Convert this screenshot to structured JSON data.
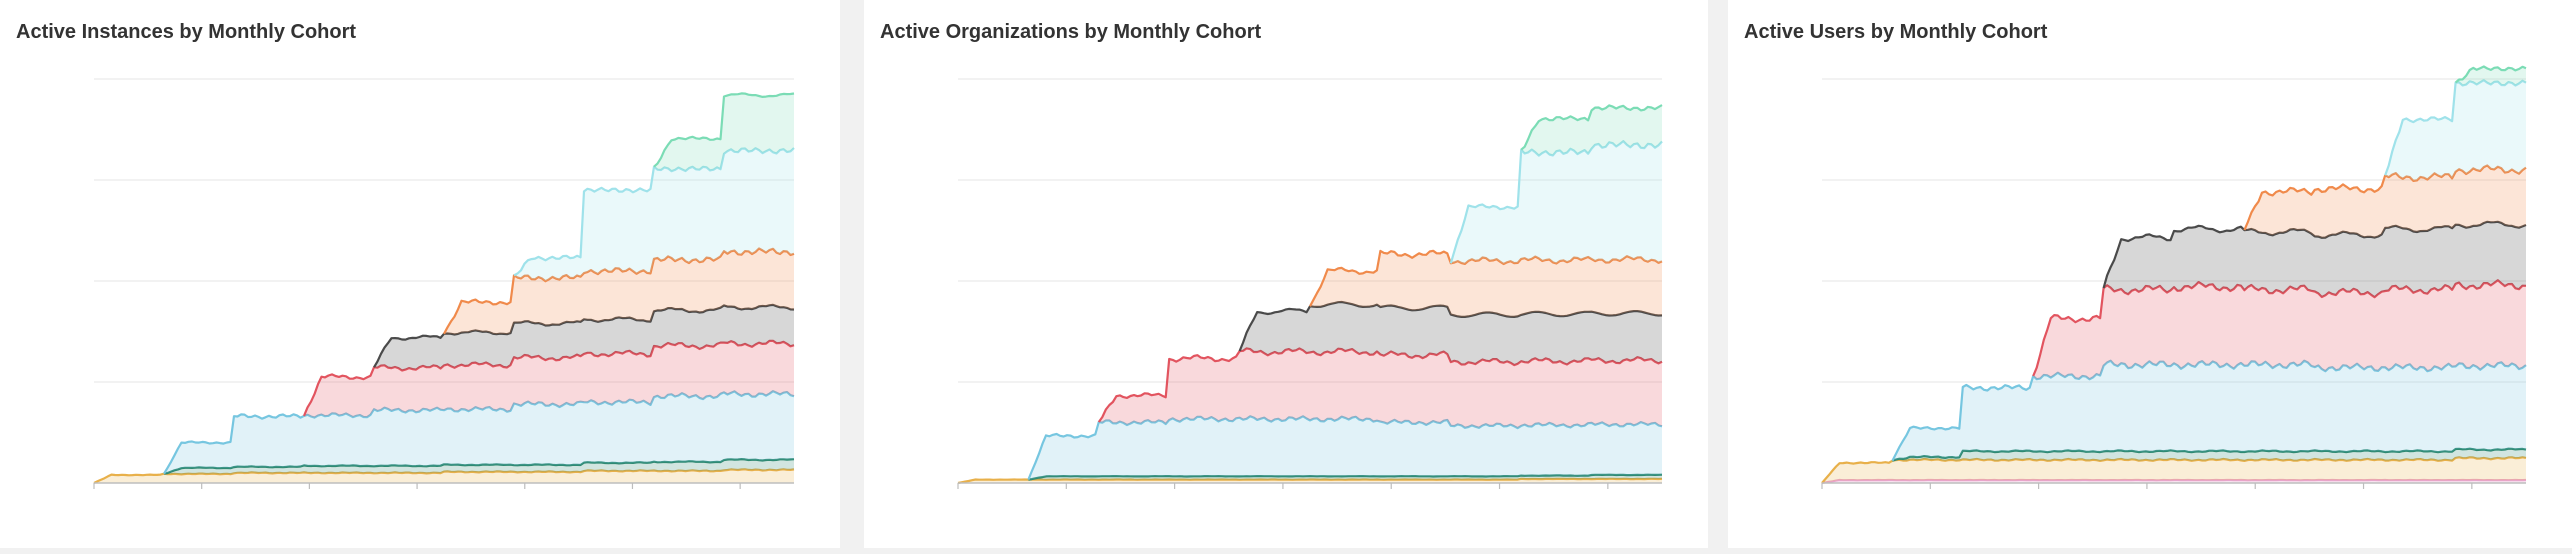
{
  "colors": {
    "mint": "#7bdcb5",
    "light_cyan": "#9fe2ea",
    "orange": "#f08a4b",
    "dark_gray": "#4a4a4a",
    "red": "#e2545f",
    "sky": "#76c6e0",
    "teal": "#2f8a72",
    "amber": "#e8b04a",
    "pink": "#e9a4cc"
  },
  "chart_data": [
    {
      "type": "area",
      "title": "Active Instances by Monthly Cohort",
      "xlabel": "",
      "ylabel": "",
      "grid": true,
      "legend": "none",
      "ylim": [
        0,
        4
      ],
      "series": [
        {
          "color": "#e8b04a",
          "start": 0,
          "values": [
            0.08,
            0.09,
            0.1,
            0.1,
            0.1,
            0.11,
            0.11,
            0.12,
            0.12,
            0.13
          ]
        },
        {
          "color": "#2f8a72",
          "start": 1,
          "values": [
            0.06,
            0.06,
            0.07,
            0.07,
            0.07,
            0.07,
            0.08,
            0.09,
            0.1
          ]
        },
        {
          "color": "#76c6e0",
          "start": 1,
          "values": [
            0.25,
            0.5,
            0.5,
            0.55,
            0.55,
            0.6,
            0.6,
            0.65,
            0.65
          ]
        },
        {
          "color": "#e2545f",
          "start": 3,
          "values": [
            0.38,
            0.42,
            0.44,
            0.46,
            0.48,
            0.5,
            0.5
          ]
        },
        {
          "color": "#4a4a4a",
          "start": 4,
          "values": [
            0.3,
            0.32,
            0.34,
            0.34,
            0.35,
            0.36
          ]
        },
        {
          "color": "#f08a4b",
          "start": 5,
          "values": [
            0.3,
            0.45,
            0.48,
            0.5,
            0.55
          ]
        },
        {
          "color": "#9fe2ea",
          "start": 6,
          "values": [
            0.2,
            0.8,
            0.9,
            1.0
          ]
        },
        {
          "color": "#7bdcb5",
          "start": 8,
          "values": [
            0.3,
            0.55
          ]
        }
      ]
    },
    {
      "type": "area",
      "title": "Active Organizations by Monthly Cohort",
      "xlabel": "",
      "ylabel": "",
      "grid": true,
      "legend": "none",
      "ylim": [
        0,
        6
      ],
      "series": [
        {
          "color": "#e8b04a",
          "start": 0,
          "values": [
            0.05,
            0.05,
            0.05,
            0.05,
            0.05,
            0.05,
            0.05,
            0.05,
            0.06,
            0.06
          ]
        },
        {
          "color": "#2f8a72",
          "start": 1,
          "values": [
            0.05,
            0.05,
            0.05,
            0.05,
            0.05,
            0.05,
            0.05,
            0.05,
            0.06
          ]
        },
        {
          "color": "#76c6e0",
          "start": 1,
          "values": [
            0.6,
            0.8,
            0.85,
            0.85,
            0.85,
            0.8,
            0.75,
            0.75,
            0.75
          ]
        },
        {
          "color": "#e2545f",
          "start": 2,
          "values": [
            0.4,
            0.9,
            1.0,
            1.0,
            1.0,
            0.95,
            0.95,
            0.95
          ]
        },
        {
          "color": "#4a4a4a",
          "start": 4,
          "values": [
            0.6,
            0.7,
            0.7,
            0.7,
            0.7,
            0.7
          ]
        },
        {
          "color": "#f08a4b",
          "start": 5,
          "values": [
            0.5,
            0.8,
            0.8,
            0.8,
            0.8
          ]
        },
        {
          "color": "#9fe2ea",
          "start": 7,
          "values": [
            0.8,
            1.6,
            1.7
          ]
        },
        {
          "color": "#7bdcb5",
          "start": 8,
          "values": [
            0.5,
            0.55
          ]
        }
      ]
    },
    {
      "type": "area",
      "title": "Active Users by Monthly Cohort",
      "xlabel": "",
      "ylabel": "",
      "grid": true,
      "legend": "none",
      "ylim": [
        0,
        7
      ],
      "series": [
        {
          "color": "#e9a4cc",
          "start": 0,
          "values": [
            0.05,
            0.05,
            0.05,
            0.05,
            0.05,
            0.05,
            0.05,
            0.05,
            0.05,
            0.05
          ]
        },
        {
          "color": "#e8b04a",
          "start": 0,
          "values": [
            0.3,
            0.35,
            0.35,
            0.35,
            0.35,
            0.35,
            0.35,
            0.35,
            0.35,
            0.38
          ]
        },
        {
          "color": "#2f8a72",
          "start": 1,
          "values": [
            0.05,
            0.15,
            0.15,
            0.15,
            0.15,
            0.15,
            0.15,
            0.15,
            0.15
          ]
        },
        {
          "color": "#76c6e0",
          "start": 1,
          "values": [
            0.5,
            1.1,
            1.3,
            1.5,
            1.5,
            1.5,
            1.45,
            1.45,
            1.45
          ]
        },
        {
          "color": "#e2545f",
          "start": 3,
          "values": [
            1.0,
            1.3,
            1.35,
            1.3,
            1.3,
            1.35,
            1.4
          ]
        },
        {
          "color": "#4a4a4a",
          "start": 4,
          "values": [
            0.9,
            1.0,
            1.0,
            1.0,
            1.05,
            1.05
          ]
        },
        {
          "color": "#f08a4b",
          "start": 6,
          "values": [
            0.7,
            0.8,
            0.9,
            0.95
          ]
        },
        {
          "color": "#9fe2ea",
          "start": 8,
          "values": [
            1.0,
            1.5
          ]
        },
        {
          "color": "#7bdcb5",
          "start": 9,
          "values": [
            0.25
          ]
        }
      ]
    }
  ]
}
